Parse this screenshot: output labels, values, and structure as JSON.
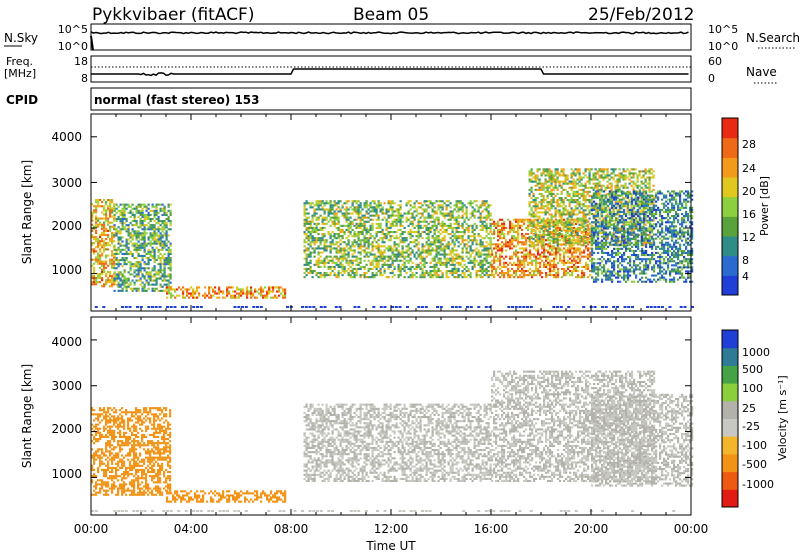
{
  "header": {
    "station": "Pykkvibaer (fitACF)",
    "beam": "Beam 05",
    "date": "25/Feb/2012"
  },
  "strip_nsky": {
    "left_label": "N.Sky",
    "left_ticks": [
      "10^5",
      "10^0"
    ],
    "right_label": "N.Search",
    "right_ticks": [
      "10^5",
      "10^0"
    ]
  },
  "strip_freq": {
    "left_label_top": "Freq.",
    "left_label_bottom": "[MHz]",
    "left_ticks": [
      "18",
      "8"
    ],
    "right_label": "Nave",
    "right_ticks": [
      "60",
      "0"
    ]
  },
  "cpid": {
    "label": "CPID",
    "text": "normal (fast stereo) 153"
  },
  "colors": {
    "power": [
      "#1f3fd6",
      "#2b6bd0",
      "#2f8c86",
      "#5aa33c",
      "#8ccf3f",
      "#e0c81f",
      "#f29a1a",
      "#ef6a16",
      "#e82a12"
    ],
    "velocity": [
      "#e01c14",
      "#ef5a13",
      "#f29316",
      "#f3b52a",
      "#c8c8c2",
      "#b2b2aa",
      "#8bcf3e",
      "#45a246",
      "#2f7a95",
      "#1f3fd6"
    ]
  },
  "chart_data": [
    {
      "type": "heatmap",
      "name_hint": "power",
      "xlabel": "",
      "ylabel": "Slant Range [km]",
      "xlim": [
        "00:00",
        "24:00"
      ],
      "ylim": [
        180,
        4500
      ],
      "y_ticks": [
        "1000",
        "2000",
        "3000",
        "4000"
      ],
      "colorbar": {
        "label": "Power [dB]",
        "ticks": [
          "4",
          "8",
          "12",
          "16",
          "20",
          "24",
          "28"
        ],
        "range": [
          0,
          30
        ]
      },
      "echo_regions": [
        {
          "t_start": 0.0,
          "t_end": 0.9,
          "range_lo": 700,
          "range_hi": 2600,
          "power": 20
        },
        {
          "t_start": 0.9,
          "t_end": 3.2,
          "range_lo": 600,
          "range_hi": 2500,
          "power": 12
        },
        {
          "t_start": 3.0,
          "t_end": 7.8,
          "range_lo": 450,
          "range_hi": 700,
          "power": 22
        },
        {
          "t_start": 8.5,
          "t_end": 16.0,
          "range_lo": 900,
          "range_hi": 2600,
          "power": 14
        },
        {
          "t_start": 16.0,
          "t_end": 20.0,
          "range_lo": 900,
          "range_hi": 2200,
          "power": 22
        },
        {
          "t_start": 17.5,
          "t_end": 22.5,
          "range_lo": 1600,
          "range_hi": 3300,
          "power": 16
        },
        {
          "t_start": 20.0,
          "t_end": 24.0,
          "range_lo": 800,
          "range_hi": 2800,
          "power": 8
        }
      ]
    },
    {
      "type": "heatmap",
      "name_hint": "velocity",
      "xlabel": "Time UT",
      "ylabel": "Slant Range [km]",
      "xlim": [
        "00:00",
        "24:00"
      ],
      "ylim": [
        180,
        4500
      ],
      "x_ticks": [
        "00:00",
        "04:00",
        "08:00",
        "12:00",
        "16:00",
        "20:00",
        "00:00"
      ],
      "y_ticks": [
        "1000",
        "2000",
        "3000",
        "4000"
      ],
      "colorbar": {
        "label": "Velocity [m s⁻¹]",
        "ticks": [
          "1000",
          "500",
          "100",
          "25",
          "-25",
          "-100",
          "-500",
          "-1000"
        ]
      },
      "echo_regions": [
        {
          "t_start": 0.0,
          "t_end": 3.2,
          "range_lo": 600,
          "range_hi": 2500,
          "velocity": -300
        },
        {
          "t_start": 3.0,
          "t_end": 7.8,
          "range_lo": 450,
          "range_hi": 700,
          "velocity": -300
        },
        {
          "t_start": 8.5,
          "t_end": 16.0,
          "range_lo": 900,
          "range_hi": 2600,
          "velocity": 0
        },
        {
          "t_start": 16.0,
          "t_end": 22.5,
          "range_lo": 900,
          "range_hi": 3300,
          "velocity": 0
        },
        {
          "t_start": 20.0,
          "t_end": 24.0,
          "range_lo": 800,
          "range_hi": 2800,
          "velocity": 0
        }
      ]
    }
  ]
}
